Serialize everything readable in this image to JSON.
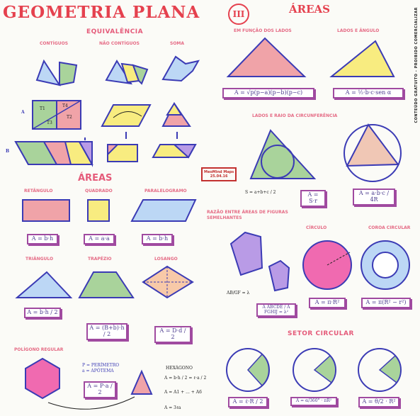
{
  "title": "GEOMETRIA PLANA",
  "title_numeral": "III",
  "areas_header": "ÁREAS",
  "side_text": "CONTEÚDO GRATUITO - PROIBIDO COMERCIALIZAR",
  "equivalencia": {
    "title": "EQUIVALÊNCIA",
    "contiguos": "CONTÍGUOS",
    "nao_contiguos": "NÃO CONTÍGUOS",
    "soma": "SOMA"
  },
  "labels": {
    "A": "A",
    "B": "B",
    "T1": "T1",
    "T2": "T2",
    "T3": "T3",
    "T4": "T4"
  },
  "areas_sec": {
    "title": "ÁREAS",
    "retangulo": "RETÂNGULO",
    "quadrado": "QUADRADO",
    "paralelogramo": "PARALELOGRAMO",
    "triangulo": "TRIÂNGULO",
    "trapezio": "TRAPÉZIO",
    "losango": "LOSANGO"
  },
  "formulas": {
    "retangulo": "A = b·h",
    "quadrado": "A = a·a",
    "paralelogramo": "A = b·h",
    "triangulo": "A = b·h / 2",
    "trapezio": "A = (B+b)·h / 2",
    "losango": "A = D·d / 2"
  },
  "heron": {
    "title": "EM FUNÇÃO DOS LADOS",
    "formula": "A = √p(p−a)(p−b)(p−c)"
  },
  "lados_angulo": {
    "title": "LADOS E ÂNGULO",
    "formula": "A = ½·b·c·sen α"
  },
  "raio": {
    "title": "LADOS E RAIO DA CIRCUNFERÊNCIA",
    "semi": "S = a+b+c / 2",
    "inscrita": "A = S·r",
    "circunscrita": "A = a·b·c / 4R"
  },
  "stamp": {
    "line1": "MeoMind Maps",
    "line2": "25.04.16"
  },
  "razao": {
    "title": "RAZÃO ENTRE ÁREAS DE FIGURAS SEMELHANTES",
    "ratio": "AB/GF = λ",
    "area_ratio": "A ABCDE / A FGHIJ = λ²"
  },
  "circulo": {
    "title": "CÍRCULO",
    "formula": "A = π·R²"
  },
  "coroa": {
    "title": "COROA CIRCULAR",
    "formula": "A = π(R² − r²)"
  },
  "setor": {
    "title": "SETOR CIRCULAR",
    "f1": "A = ℓ·R / 2",
    "f2": "A = α/360° · πR²",
    "f3": "A = θ/2 · R²"
  },
  "poligono": {
    "title": "POLÍGONO REGULAR",
    "p": "P = PERÍMETRO",
    "a": "a = APÓTEMA",
    "formula": "A = P·a / 2",
    "hexagono": "HEXÁGONO",
    "h1": "A = b·h / 2 = ℓ·a / 2",
    "h2": "A = A1 + ... + A6",
    "h3": "A = 3ℓa"
  },
  "colors": {
    "red": "#e5414e",
    "purple": "#a04aa0",
    "blue": "#3b3bb5",
    "pink": "#f0a3a8",
    "green": "#a9d39b",
    "yellow": "#f8ec80",
    "lblue": "#bcd7f5",
    "lilac": "#b99be6",
    "magenta": "#f06ab0",
    "navy": "#2f2f9a"
  }
}
